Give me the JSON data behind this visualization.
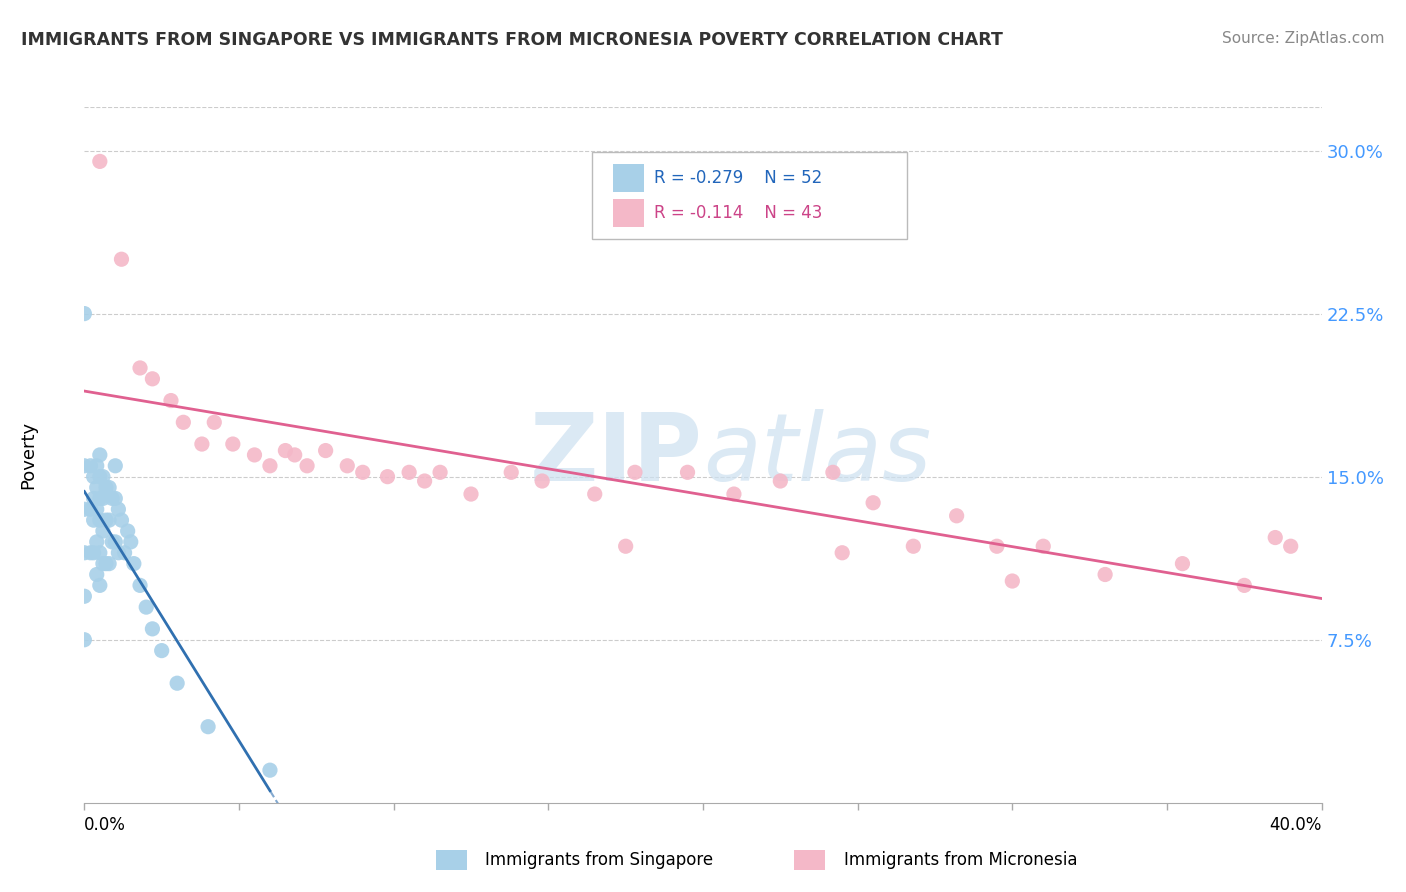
{
  "title": "IMMIGRANTS FROM SINGAPORE VS IMMIGRANTS FROM MICRONESIA POVERTY CORRELATION CHART",
  "source": "Source: ZipAtlas.com",
  "ylabel": "Poverty",
  "xlim": [
    0.0,
    0.4
  ],
  "ylim": [
    0.0,
    0.32
  ],
  "yticks": [
    0.0,
    0.075,
    0.15,
    0.225,
    0.3
  ],
  "ytick_labels": [
    "",
    "7.5%",
    "15.0%",
    "22.5%",
    "30.0%"
  ],
  "xticks": [
    0.0,
    0.05,
    0.1,
    0.15,
    0.2,
    0.25,
    0.3,
    0.35,
    0.4
  ],
  "watermark_zip": "ZIP",
  "watermark_atlas": "atlas",
  "legend_R1": "R = -0.279",
  "legend_N1": "N = 52",
  "legend_R2": "R = -0.114",
  "legend_N2": "N = 43",
  "color_singapore": "#a8d0e8",
  "color_micronesia": "#f4b8c8",
  "trendline_color_singapore": "#3070b0",
  "trendline_color_micronesia": "#e06090",
  "legend_label_singapore": "Immigrants from Singapore",
  "legend_label_micronesia": "Immigrants from Micronesia",
  "background_color": "#ffffff",
  "grid_color": "#cccccc",
  "ytick_color": "#4499ff",
  "singapore_x": [
    0.0,
    0.0,
    0.0,
    0.0,
    0.0,
    0.002,
    0.002,
    0.002,
    0.003,
    0.003,
    0.003,
    0.003,
    0.004,
    0.004,
    0.004,
    0.004,
    0.004,
    0.005,
    0.005,
    0.005,
    0.005,
    0.005,
    0.005,
    0.006,
    0.006,
    0.006,
    0.006,
    0.007,
    0.007,
    0.007,
    0.008,
    0.008,
    0.008,
    0.009,
    0.009,
    0.01,
    0.01,
    0.01,
    0.011,
    0.011,
    0.012,
    0.013,
    0.014,
    0.015,
    0.016,
    0.018,
    0.02,
    0.022,
    0.025,
    0.03,
    0.04,
    0.06
  ],
  "singapore_y": [
    0.155,
    0.135,
    0.115,
    0.095,
    0.075,
    0.155,
    0.135,
    0.115,
    0.15,
    0.14,
    0.13,
    0.115,
    0.155,
    0.145,
    0.135,
    0.12,
    0.105,
    0.16,
    0.15,
    0.14,
    0.13,
    0.115,
    0.1,
    0.15,
    0.14,
    0.125,
    0.11,
    0.145,
    0.13,
    0.11,
    0.145,
    0.13,
    0.11,
    0.14,
    0.12,
    0.155,
    0.14,
    0.12,
    0.135,
    0.115,
    0.13,
    0.115,
    0.125,
    0.12,
    0.11,
    0.1,
    0.09,
    0.08,
    0.07,
    0.055,
    0.035,
    0.015
  ],
  "singapore_outlier_x": [
    0.0
  ],
  "singapore_outlier_y": [
    0.225
  ],
  "micronesia_x": [
    0.005,
    0.012,
    0.018,
    0.022,
    0.028,
    0.032,
    0.038,
    0.042,
    0.048,
    0.055,
    0.06,
    0.065,
    0.072,
    0.078,
    0.085,
    0.09,
    0.098,
    0.105,
    0.115,
    0.125,
    0.138,
    0.148,
    0.165,
    0.178,
    0.195,
    0.21,
    0.225,
    0.242,
    0.255,
    0.268,
    0.282,
    0.295,
    0.31,
    0.33,
    0.355,
    0.375,
    0.39,
    0.385,
    0.3,
    0.245,
    0.175,
    0.11,
    0.068
  ],
  "micronesia_y": [
    0.295,
    0.25,
    0.2,
    0.195,
    0.185,
    0.175,
    0.165,
    0.175,
    0.165,
    0.16,
    0.155,
    0.162,
    0.155,
    0.162,
    0.155,
    0.152,
    0.15,
    0.152,
    0.152,
    0.142,
    0.152,
    0.148,
    0.142,
    0.152,
    0.152,
    0.142,
    0.148,
    0.152,
    0.138,
    0.118,
    0.132,
    0.118,
    0.118,
    0.105,
    0.11,
    0.1,
    0.118,
    0.122,
    0.102,
    0.115,
    0.118,
    0.148,
    0.16
  ]
}
